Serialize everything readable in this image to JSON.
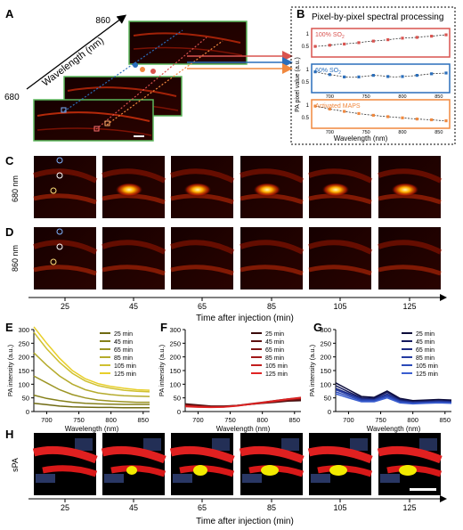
{
  "panels": {
    "A": {
      "letter": "A",
      "axis_label": "Wavelength (nm)",
      "wavelength_top": "860",
      "wavelength_bottom": "680"
    },
    "B": {
      "letter": "B",
      "title": "Pixel-by-pixel spectral processing",
      "ylabel": "PA pixel value (a.u.)",
      "xlabel": "Wavelength (nm)",
      "xticks": [
        "700",
        "750",
        "800",
        "850"
      ],
      "charts": [
        {
          "label_main": "100% SO",
          "label_sub": "2",
          "color": "#d9534f",
          "yticks": [
            "1",
            "0.5"
          ],
          "x": [
            680,
            690,
            700,
            710,
            720,
            730,
            740,
            750,
            760,
            770,
            780,
            790,
            800,
            810,
            820,
            830,
            840,
            850,
            860
          ],
          "values": [
            0.36,
            0.38,
            0.42,
            0.46,
            0.48,
            0.52,
            0.55,
            0.6,
            0.63,
            0.66,
            0.7,
            0.74,
            0.78,
            0.8,
            0.82,
            0.86,
            0.88,
            0.92,
            0.95
          ]
        },
        {
          "label_main": "60% SO",
          "label_sub": "2",
          "color": "#2a6ebb",
          "yticks": [
            "1",
            "0.5"
          ],
          "x": [
            680,
            690,
            700,
            710,
            720,
            730,
            740,
            750,
            760,
            770,
            780,
            790,
            800,
            810,
            820,
            830,
            840,
            850,
            860
          ],
          "values": [
            0.88,
            0.8,
            0.74,
            0.68,
            0.62,
            0.6,
            0.62,
            0.66,
            0.7,
            0.68,
            0.64,
            0.62,
            0.64,
            0.66,
            0.7,
            0.74,
            0.78,
            0.8,
            0.82
          ]
        },
        {
          "label_main": "Activated MAPS",
          "label_sub": "",
          "color": "#f0883e",
          "yticks": [
            "1",
            "0.5"
          ],
          "x": [
            680,
            690,
            700,
            710,
            720,
            730,
            740,
            750,
            760,
            770,
            780,
            790,
            800,
            810,
            820,
            830,
            840,
            850,
            860
          ],
          "values": [
            0.95,
            0.88,
            0.8,
            0.74,
            0.68,
            0.62,
            0.57,
            0.52,
            0.48,
            0.44,
            0.41,
            0.38,
            0.35,
            0.32,
            0.29,
            0.27,
            0.25,
            0.22,
            0.2
          ]
        }
      ]
    },
    "C": {
      "letter": "C",
      "row_label": "680 nm"
    },
    "D": {
      "letter": "D",
      "row_label": "860 nm"
    },
    "time_axis": {
      "label": "Time after injection (min)",
      "ticks": [
        "25",
        "45",
        "65",
        "85",
        "105",
        "125"
      ]
    },
    "H": {
      "letter": "H",
      "row_label": "sPA",
      "axis_label": "Time after injection (min)",
      "ticks": [
        "25",
        "45",
        "65",
        "85",
        "105",
        "125"
      ]
    }
  },
  "chart_data": [
    {
      "panel": "E",
      "type": "line",
      "xlabel": "Wavelength (nm)",
      "ylabel": "PA intensity (a.u.)",
      "xlim": [
        680,
        860
      ],
      "ylim": [
        0,
        300
      ],
      "xticks": [
        700,
        750,
        800,
        850
      ],
      "yticks": [
        0,
        50,
        100,
        150,
        200,
        250,
        300
      ],
      "x": [
        680,
        700,
        720,
        740,
        760,
        780,
        800,
        820,
        840,
        860
      ],
      "series": [
        {
          "name": "25 min",
          "color": "#6f6a12",
          "values": [
            30,
            25,
            20,
            17,
            16,
            15,
            15,
            14,
            14,
            14
          ]
        },
        {
          "name": "45 min",
          "color": "#85801a",
          "values": [
            60,
            48,
            40,
            34,
            30,
            28,
            27,
            26,
            26,
            26
          ]
        },
        {
          "name": "65 min",
          "color": "#9c9524",
          "values": [
            130,
            105,
            80,
            62,
            50,
            42,
            38,
            36,
            34,
            34
          ]
        },
        {
          "name": "85 min",
          "color": "#b5ab2c",
          "values": [
            215,
            170,
            130,
            100,
            80,
            68,
            62,
            58,
            56,
            55
          ]
        },
        {
          "name": "105 min",
          "color": "#cfc030",
          "values": [
            290,
            230,
            180,
            140,
            112,
            95,
            85,
            78,
            74,
            72
          ]
        },
        {
          "name": "125 min",
          "color": "#e8cf2a",
          "values": [
            310,
            250,
            195,
            150,
            120,
            102,
            92,
            85,
            80,
            78
          ]
        }
      ]
    },
    {
      "panel": "F",
      "type": "line",
      "xlabel": "Wavelength (nm)",
      "ylabel": "PA intensity (a.u.)",
      "xlim": [
        680,
        860
      ],
      "ylim": [
        0,
        300
      ],
      "xticks": [
        700,
        750,
        800,
        850
      ],
      "yticks": [
        0,
        50,
        100,
        150,
        200,
        250,
        300
      ],
      "x": [
        680,
        700,
        720,
        740,
        760,
        780,
        800,
        820,
        840,
        860
      ],
      "series": [
        {
          "name": "25 min",
          "color": "#3a0a0a",
          "values": [
            28,
            24,
            20,
            20,
            22,
            26,
            30,
            34,
            38,
            40
          ]
        },
        {
          "name": "45 min",
          "color": "#5c0f0f",
          "values": [
            26,
            22,
            19,
            19,
            22,
            27,
            32,
            36,
            40,
            44
          ]
        },
        {
          "name": "65 min",
          "color": "#7e1414",
          "values": [
            24,
            20,
            18,
            18,
            21,
            26,
            31,
            36,
            42,
            46
          ]
        },
        {
          "name": "85 min",
          "color": "#a01818",
          "values": [
            22,
            19,
            17,
            18,
            22,
            28,
            34,
            40,
            46,
            50
          ]
        },
        {
          "name": "105 min",
          "color": "#c21d1d",
          "values": [
            20,
            18,
            16,
            17,
            21,
            27,
            33,
            40,
            46,
            52
          ]
        },
        {
          "name": "125 min",
          "color": "#e02424",
          "values": [
            18,
            16,
            15,
            16,
            20,
            26,
            32,
            38,
            45,
            50
          ]
        }
      ]
    },
    {
      "panel": "G",
      "type": "line",
      "xlabel": "Wavelength (nm)",
      "ylabel": "PA intensity (a.u.)",
      "xlim": [
        680,
        860
      ],
      "ylim": [
        0,
        300
      ],
      "xticks": [
        700,
        750,
        800,
        850
      ],
      "yticks": [
        0,
        50,
        100,
        150,
        200,
        250,
        300
      ],
      "x": [
        680,
        700,
        720,
        740,
        760,
        780,
        800,
        820,
        840,
        860
      ],
      "series": [
        {
          "name": "25 min",
          "color": "#0b0b3a",
          "values": [
            105,
            80,
            55,
            52,
            75,
            48,
            40,
            42,
            44,
            42
          ]
        },
        {
          "name": "45 min",
          "color": "#14195e",
          "values": [
            95,
            72,
            50,
            48,
            70,
            44,
            36,
            38,
            40,
            38
          ]
        },
        {
          "name": "65 min",
          "color": "#1c2a82",
          "values": [
            85,
            66,
            46,
            44,
            64,
            40,
            34,
            36,
            38,
            36
          ]
        },
        {
          "name": "85 min",
          "color": "#243aa0",
          "values": [
            80,
            62,
            44,
            42,
            60,
            38,
            32,
            34,
            36,
            34
          ]
        },
        {
          "name": "105 min",
          "color": "#2c4ab8",
          "values": [
            72,
            56,
            40,
            40,
            55,
            35,
            30,
            32,
            34,
            32
          ]
        },
        {
          "name": "125 min",
          "color": "#3a5ed0",
          "values": [
            65,
            50,
            36,
            36,
            50,
            32,
            28,
            30,
            32,
            30
          ]
        }
      ]
    }
  ]
}
